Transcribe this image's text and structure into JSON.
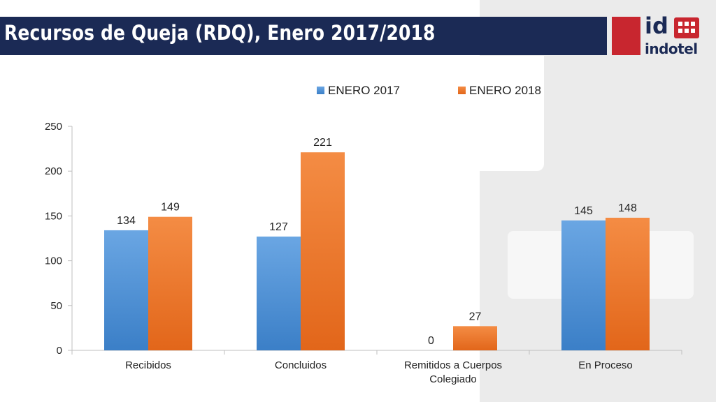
{
  "header": {
    "title": "Recursos de Queja (RDQ), Enero 2017/2018",
    "logo_text": "indotel"
  },
  "colors": {
    "header_bg": "#1b2a55",
    "brand_red": "#c8262f",
    "series_2017": "#4a8fd6",
    "series_2018": "#f07b2c"
  },
  "chart_data": {
    "type": "bar",
    "categories": [
      "Recibidos",
      "Concluidos",
      "Remitidos a Cuerpos Colegiado",
      "En Proceso"
    ],
    "category_lines": [
      [
        "Recibidos"
      ],
      [
        "Concluidos"
      ],
      [
        "Remitidos a Cuerpos",
        "Colegiado"
      ],
      [
        "En Proceso"
      ]
    ],
    "series": [
      {
        "name": "ENERO 2017",
        "values": [
          134,
          127,
          0,
          145
        ]
      },
      {
        "name": "ENERO 2018",
        "values": [
          149,
          221,
          27,
          148
        ]
      }
    ],
    "ylim": [
      0,
      250
    ],
    "yticks": [
      0,
      50,
      100,
      150,
      200,
      250
    ],
    "legend_position": "top",
    "grid": false
  }
}
